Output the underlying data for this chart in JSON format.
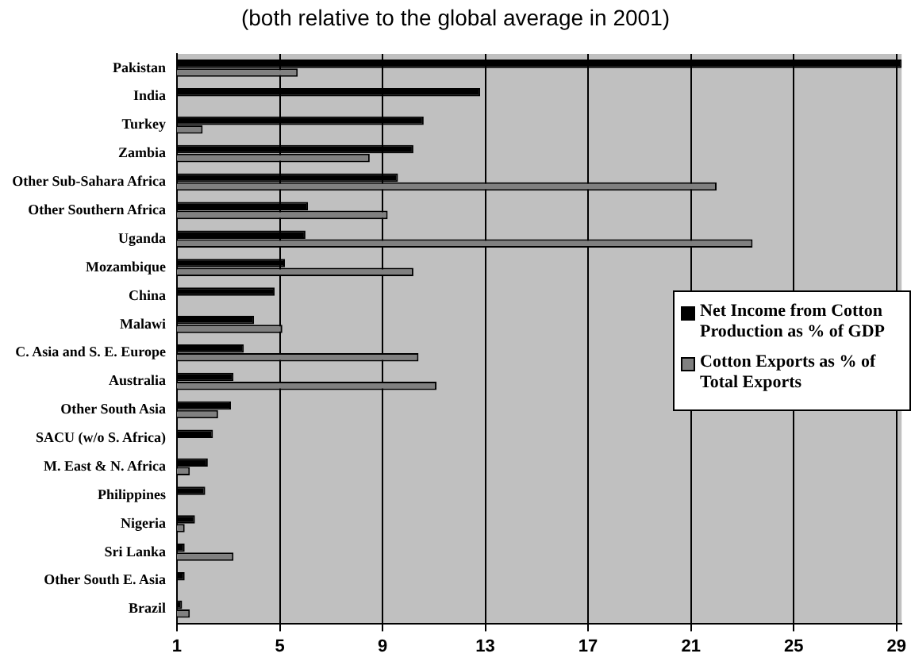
{
  "chart_data": {
    "type": "bar",
    "orientation": "horizontal",
    "title": "(both relative to the global average in 2001)",
    "categories": [
      "Pakistan",
      "India",
      "Turkey",
      "Zambia",
      "Other Sub-Sahara Africa",
      "Other Southern Africa",
      "Uganda",
      "Mozambique",
      "China",
      "Malawi",
      "C. Asia and S. E. Europe",
      "Australia",
      "Other South Asia",
      "SACU (w/o S. Africa)",
      "M. East & N. Africa",
      "Philippines",
      "Nigeria",
      "Sri Lanka",
      "Other South E. Asia",
      "Brazil"
    ],
    "series": [
      {
        "name": "Net Income from Cotton Production as % of  GDP",
        "color": "#000000",
        "values": [
          29.2,
          12.8,
          10.6,
          10.2,
          9.6,
          6.1,
          6.0,
          5.2,
          4.8,
          4.0,
          3.6,
          3.2,
          3.1,
          2.4,
          2.2,
          2.1,
          1.7,
          1.3,
          1.3,
          1.2
        ]
      },
      {
        "name": "Cotton Exports as % of Total Exports",
        "color": "#808080",
        "values": [
          5.7,
          null,
          2.0,
          8.5,
          22.0,
          9.2,
          23.4,
          10.2,
          null,
          5.1,
          10.4,
          11.1,
          2.6,
          null,
          1.5,
          null,
          1.3,
          3.2,
          null,
          1.5
        ]
      }
    ],
    "xlim": [
      1,
      29.2
    ],
    "xticks": [
      1,
      5,
      9,
      13,
      17,
      21,
      25,
      29
    ],
    "grid": "x",
    "legend": "right"
  }
}
